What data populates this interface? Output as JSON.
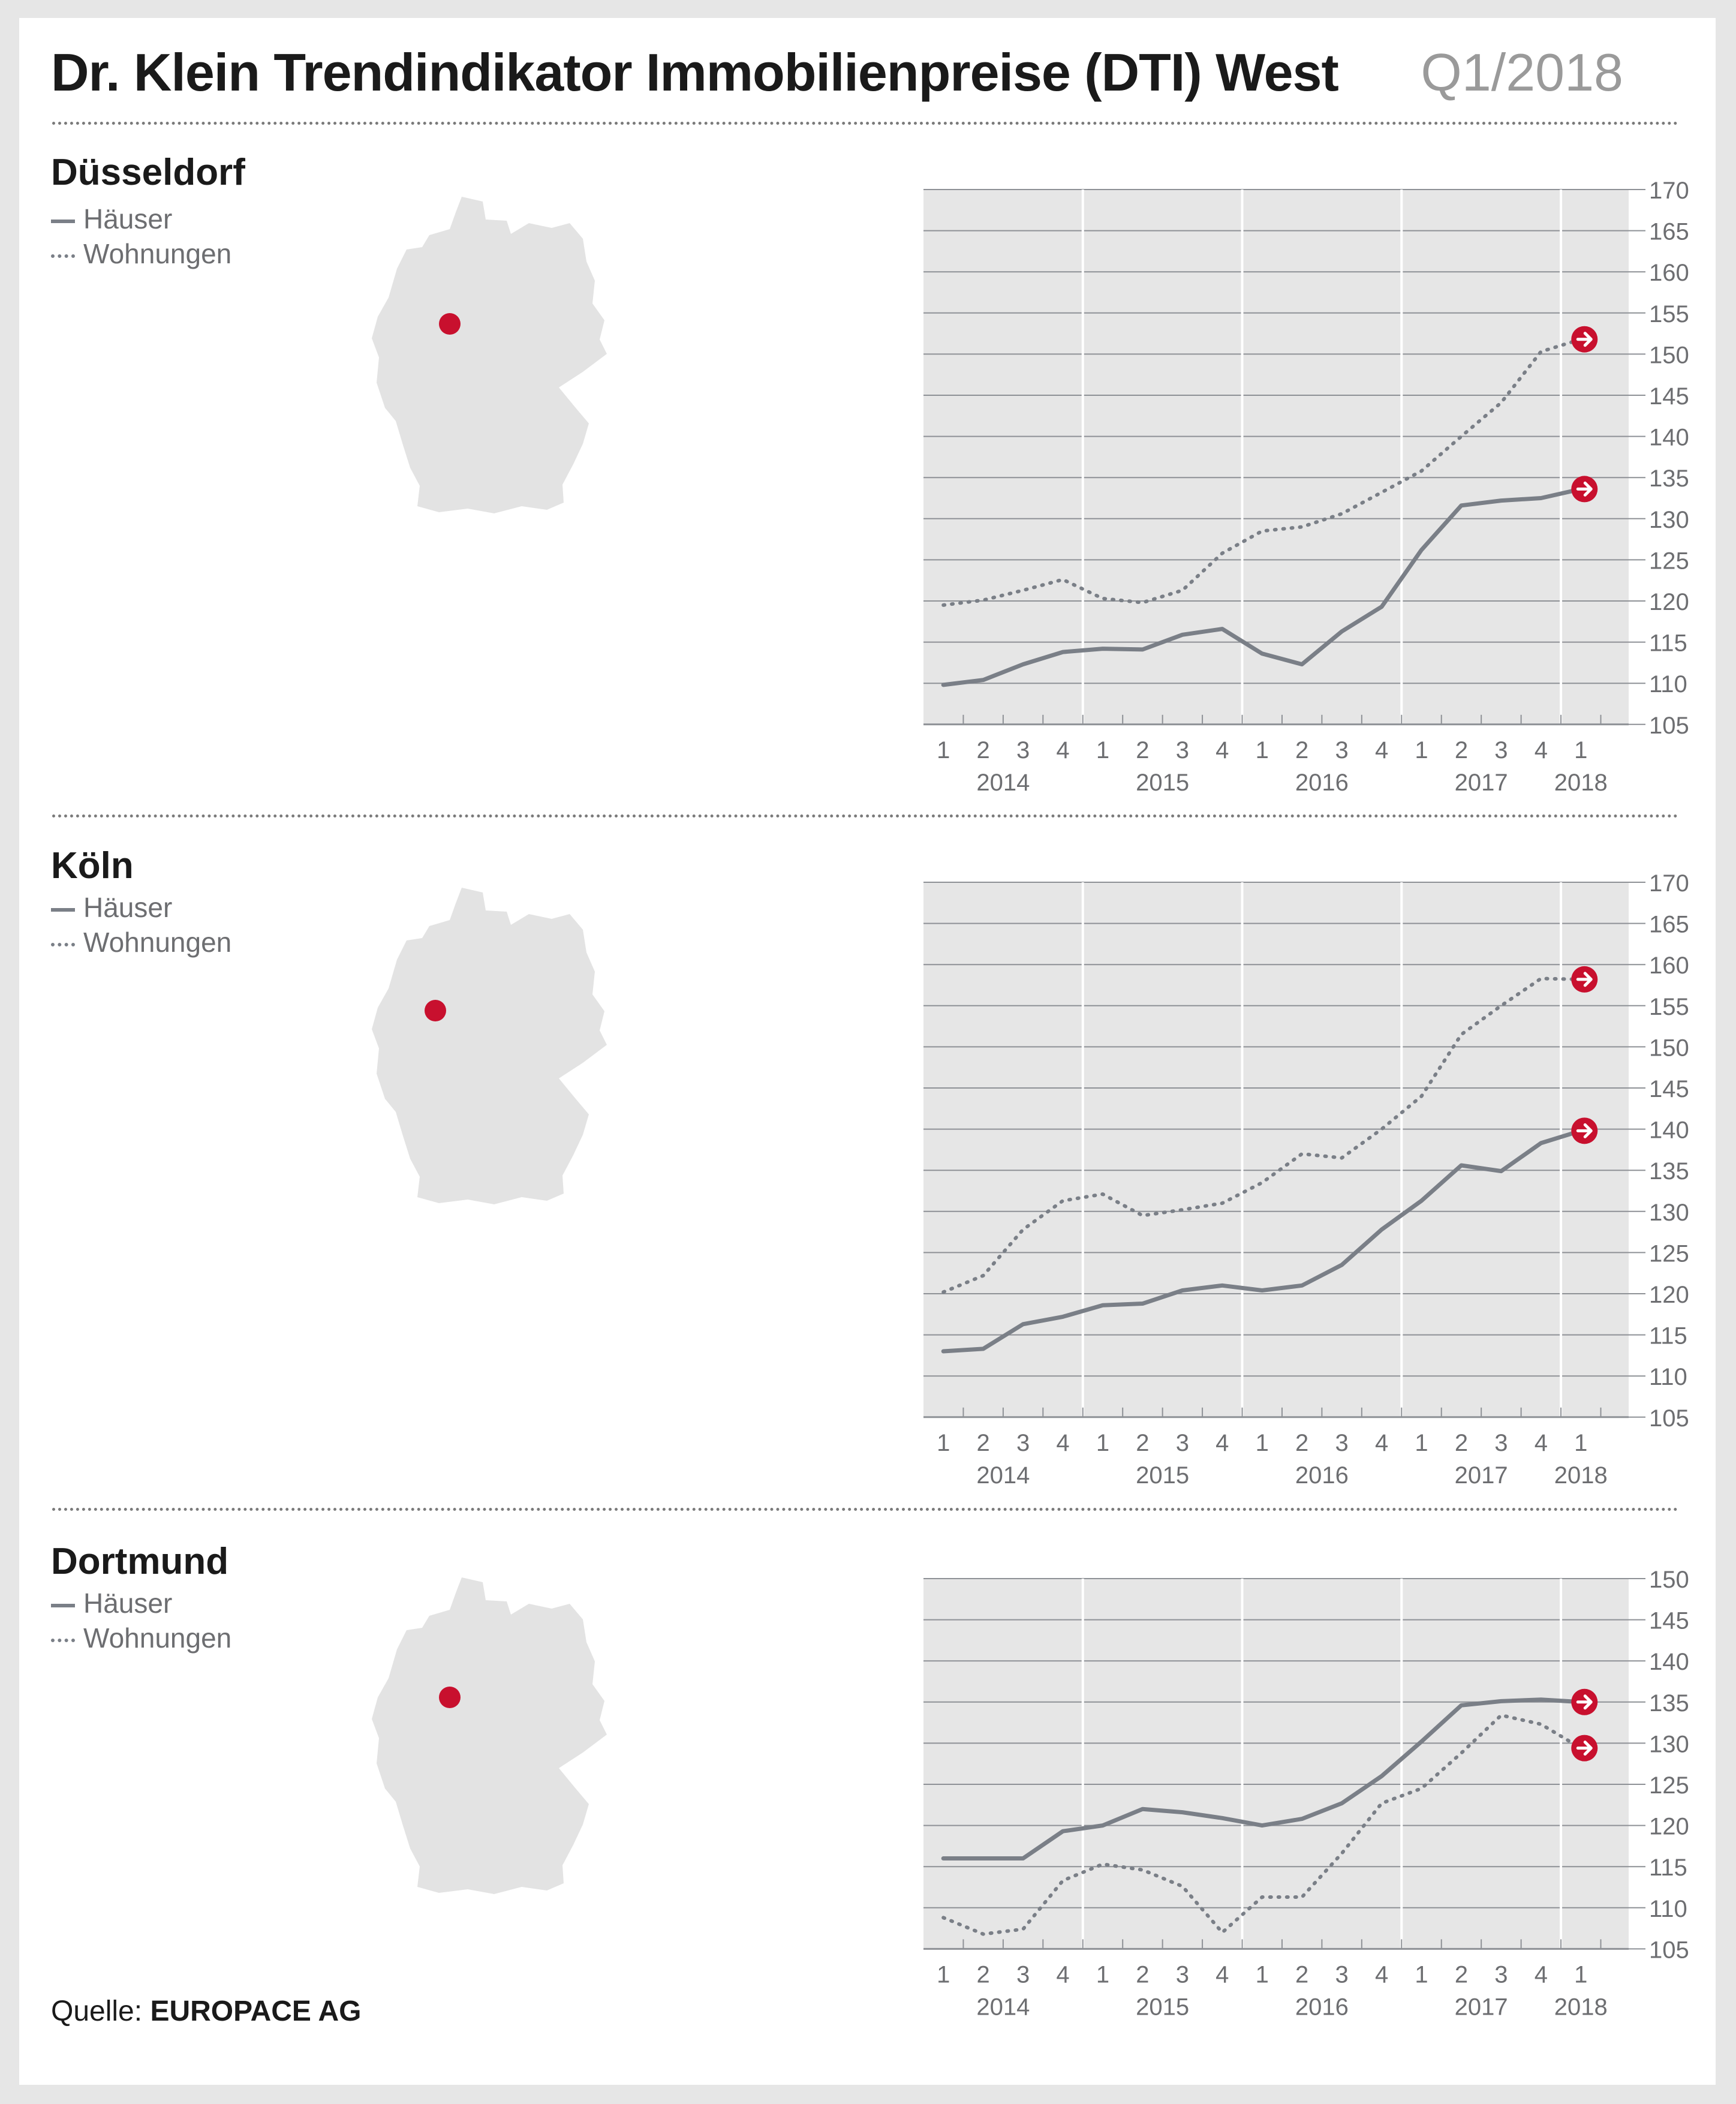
{
  "header": {
    "title": "Dr. Klein Trendindikator Immobilienpreise (DTI) West",
    "period": "Q1/2018"
  },
  "legend": {
    "houses": "Häuser",
    "apartments": "Wohnungen"
  },
  "source": {
    "prefix": "Quelle:",
    "name": "EUROPACE AG"
  },
  "colors": {
    "line": "#7a7f87",
    "marker": "#c8102e",
    "plot_bg": "#e6e6e6",
    "grid": "#ffffff"
  },
  "icons": {
    "end_marker": "arrow-right-circle-icon",
    "map": "germany-map-icon",
    "location": "city-location-dot-icon"
  },
  "chart_data": [
    {
      "type": "line",
      "title": "Düsseldorf",
      "x_quarters": [
        "1",
        "2",
        "3",
        "4",
        "1",
        "2",
        "3",
        "4",
        "1",
        "2",
        "3",
        "4",
        "1",
        "2",
        "3",
        "4",
        "1"
      ],
      "x_years": [
        "2014",
        "2015",
        "2016",
        "2017",
        "2018"
      ],
      "ylim": [
        105,
        170
      ],
      "yticks": [
        105,
        110,
        115,
        120,
        125,
        130,
        135,
        140,
        145,
        150,
        155,
        160,
        165,
        170
      ],
      "map_location": "Düsseldorf",
      "series": [
        {
          "name": "Häuser",
          "style": "solid",
          "values": [
            109.8,
            110.4,
            112.3,
            113.8,
            114.2,
            114.1,
            115.9,
            116.6,
            113.6,
            112.3,
            116.3,
            119.3,
            126.2,
            131.6,
            132.2,
            132.5,
            133.6
          ]
        },
        {
          "name": "Wohnungen",
          "style": "dotted",
          "values": [
            119.5,
            120.1,
            121.3,
            122.6,
            120.3,
            119.8,
            121.3,
            125.8,
            128.5,
            129.0,
            130.6,
            133.2,
            135.8,
            140.0,
            144.1,
            150.3,
            151.8
          ]
        }
      ]
    },
    {
      "type": "line",
      "title": "Köln",
      "x_quarters": [
        "1",
        "2",
        "3",
        "4",
        "1",
        "2",
        "3",
        "4",
        "1",
        "2",
        "3",
        "4",
        "1",
        "2",
        "3",
        "4",
        "1"
      ],
      "x_years": [
        "2014",
        "2015",
        "2016",
        "2017",
        "2018"
      ],
      "ylim": [
        105,
        170
      ],
      "yticks": [
        105,
        110,
        115,
        120,
        125,
        130,
        135,
        140,
        145,
        150,
        155,
        160,
        165,
        170
      ],
      "map_location": "Köln",
      "series": [
        {
          "name": "Häuser",
          "style": "solid",
          "values": [
            113.0,
            113.3,
            116.3,
            117.2,
            118.6,
            118.8,
            120.4,
            121.0,
            120.4,
            121.0,
            123.5,
            127.8,
            131.3,
            135.6,
            134.9,
            138.3,
            139.8
          ]
        },
        {
          "name": "Wohnungen",
          "style": "dotted",
          "values": [
            120.2,
            122.2,
            127.8,
            131.3,
            132.1,
            129.5,
            130.2,
            131.0,
            133.5,
            137.0,
            136.5,
            140.0,
            144.0,
            151.5,
            155.0,
            158.3,
            158.2
          ]
        }
      ]
    },
    {
      "type": "line",
      "title": "Dortmund",
      "x_quarters": [
        "1",
        "2",
        "3",
        "4",
        "1",
        "2",
        "3",
        "4",
        "1",
        "2",
        "3",
        "4",
        "1",
        "2",
        "3",
        "4",
        "1"
      ],
      "x_years": [
        "2014",
        "2015",
        "2016",
        "2017",
        "2018"
      ],
      "ylim": [
        105,
        150
      ],
      "yticks": [
        105,
        110,
        115,
        120,
        125,
        130,
        135,
        140,
        145,
        150
      ],
      "map_location": "Dortmund",
      "series": [
        {
          "name": "Häuser",
          "style": "solid",
          "values": [
            116.0,
            116.0,
            116.0,
            119.3,
            120.0,
            122.0,
            121.6,
            120.9,
            120.0,
            120.8,
            122.7,
            126.0,
            130.2,
            134.6,
            135.1,
            135.3,
            135.0
          ]
        },
        {
          "name": "Wohnungen",
          "style": "dotted",
          "values": [
            108.8,
            106.8,
            107.4,
            113.3,
            115.3,
            114.6,
            112.6,
            107.0,
            111.3,
            111.3,
            116.6,
            122.7,
            124.5,
            128.8,
            133.4,
            132.3,
            129.4
          ]
        }
      ]
    }
  ]
}
